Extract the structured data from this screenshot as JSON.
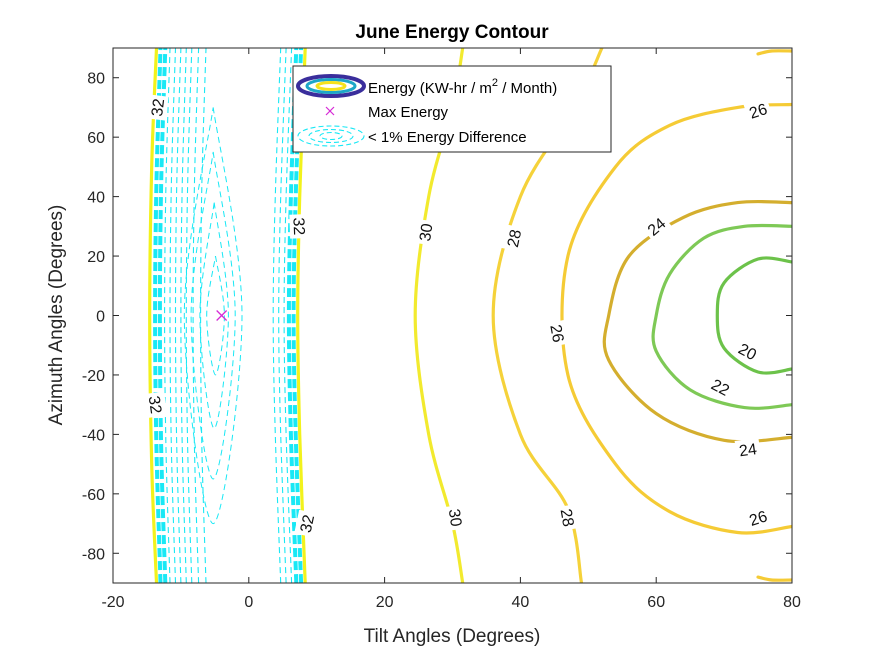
{
  "chart_data": {
    "type": "contour",
    "title": "June Energy Contour",
    "xlabel": "Tilt Angles (Degrees)",
    "ylabel": "Azimuth Angles (Degrees)",
    "xlim": [
      -20,
      80
    ],
    "ylim": [
      -90,
      90
    ],
    "xticks": [
      -20,
      0,
      20,
      40,
      60,
      80
    ],
    "yticks": [
      -80,
      -60,
      -40,
      -20,
      0,
      20,
      40,
      60,
      80
    ],
    "grid": false,
    "legend": {
      "placement": "top-center",
      "entries": [
        {
          "label_pre": "Energy (KW-hr / m",
          "label_sup": "2",
          "label_post": " / Month)"
        },
        {
          "label": "Max Energy"
        },
        {
          "label": "< 1% Energy Difference"
        }
      ]
    },
    "max_point": {
      "x": -4,
      "y": 0,
      "marker": "x",
      "color": "#d62ad6"
    },
    "levels": [
      {
        "value": 32,
        "label": "32",
        "color": "#f2f21c",
        "points": [
          [
            -13.6,
            -90
          ],
          [
            -14.3,
            -50
          ],
          [
            -14.6,
            0
          ],
          [
            -14.3,
            50
          ],
          [
            -13.6,
            90
          ]
        ],
        "labels_at": [
          [
            -13.5,
            70,
            -83
          ],
          [
            -13.7,
            -30,
            82
          ]
        ]
      },
      {
        "value": 32,
        "label": "32",
        "color": "#f2f21c",
        "points": [
          [
            8.3,
            -90
          ],
          [
            7.5,
            -40
          ],
          [
            7.2,
            0
          ],
          [
            7.5,
            40
          ],
          [
            8.3,
            90
          ]
        ],
        "labels_at": [
          [
            7.5,
            30,
            88
          ],
          [
            8.5,
            -70,
            -78
          ]
        ]
      },
      {
        "value": 30,
        "label": "30",
        "color": "#f2ea2e",
        "points": [
          [
            31.5,
            -90
          ],
          [
            30,
            -70
          ],
          [
            26.5,
            -40
          ],
          [
            24.5,
            0
          ],
          [
            26.5,
            40
          ],
          [
            30,
            70
          ],
          [
            31.5,
            90
          ]
        ],
        "labels_at": [
          [
            26,
            28,
            -82
          ],
          [
            30.5,
            -68,
            82
          ]
        ]
      },
      {
        "value": 28,
        "label": "28",
        "color": "#f5d23a",
        "points": [
          [
            49,
            -90
          ],
          [
            47,
            -65
          ],
          [
            40,
            -40
          ],
          [
            36,
            0
          ],
          [
            40,
            40
          ],
          [
            48,
            70
          ],
          [
            52,
            90
          ]
        ],
        "labels_at": [
          [
            39,
            26,
            -78
          ],
          [
            47,
            -68,
            80
          ]
        ]
      },
      {
        "value": 26,
        "label": "26",
        "color": "#f5cb35",
        "points": [
          [
            80,
            -71
          ],
          [
            72,
            -73
          ],
          [
            62,
            -66
          ],
          [
            54,
            -50
          ],
          [
            47,
            -20
          ],
          [
            47,
            20
          ],
          [
            54,
            50
          ],
          [
            62,
            64
          ],
          [
            72,
            70
          ],
          [
            80,
            71
          ]
        ],
        "labels_at": [
          [
            75,
            -68,
            -18
          ],
          [
            45.5,
            -6,
            80
          ],
          [
            75,
            69,
            -18
          ]
        ]
      },
      {
        "value": 24,
        "label": "24",
        "color": "#d4ae2e",
        "points": [
          [
            80,
            -41
          ],
          [
            70,
            -42
          ],
          [
            60,
            -33
          ],
          [
            53,
            -15
          ],
          [
            53,
            0
          ],
          [
            56,
            20
          ],
          [
            64,
            33
          ],
          [
            72,
            38
          ],
          [
            80,
            38
          ]
        ],
        "labels_at": [
          [
            73.5,
            -45,
            -8
          ],
          [
            60,
            30,
            -40
          ]
        ]
      },
      {
        "value": 22,
        "label": "22",
        "color": "#7ec956",
        "points": [
          [
            80,
            -30
          ],
          [
            73,
            -31
          ],
          [
            65,
            -25
          ],
          [
            60,
            -12
          ],
          [
            60,
            0
          ],
          [
            62,
            14
          ],
          [
            67,
            26
          ],
          [
            73,
            30
          ],
          [
            80,
            30
          ]
        ],
        "labels_at": [
          [
            69.5,
            -24,
            28
          ]
        ]
      },
      {
        "value": 20,
        "label": "20",
        "color": "#6cc24a",
        "points": [
          [
            80,
            -18
          ],
          [
            75,
            -19
          ],
          [
            70,
            -11
          ],
          [
            69,
            0
          ],
          [
            70,
            11
          ],
          [
            75,
            19
          ],
          [
            80,
            18
          ]
        ],
        "labels_at": [
          [
            73.5,
            -12,
            28
          ]
        ]
      },
      {
        "value": 26,
        "label": "",
        "color": "#f5cb35",
        "points": [
          [
            75,
            88
          ],
          [
            77,
            89
          ],
          [
            80,
            89
          ]
        ],
        "labels_at": []
      },
      {
        "value": 26,
        "label": "",
        "color": "#f5cb35",
        "points": [
          [
            75,
            -88
          ],
          [
            77,
            -89
          ],
          [
            80,
            -89
          ]
        ],
        "labels_at": []
      }
    ],
    "within_1pct_region": {
      "color": "#19e8f5",
      "x_range": [
        -14,
        7.5
      ],
      "y_range": [
        -90,
        90
      ]
    }
  }
}
